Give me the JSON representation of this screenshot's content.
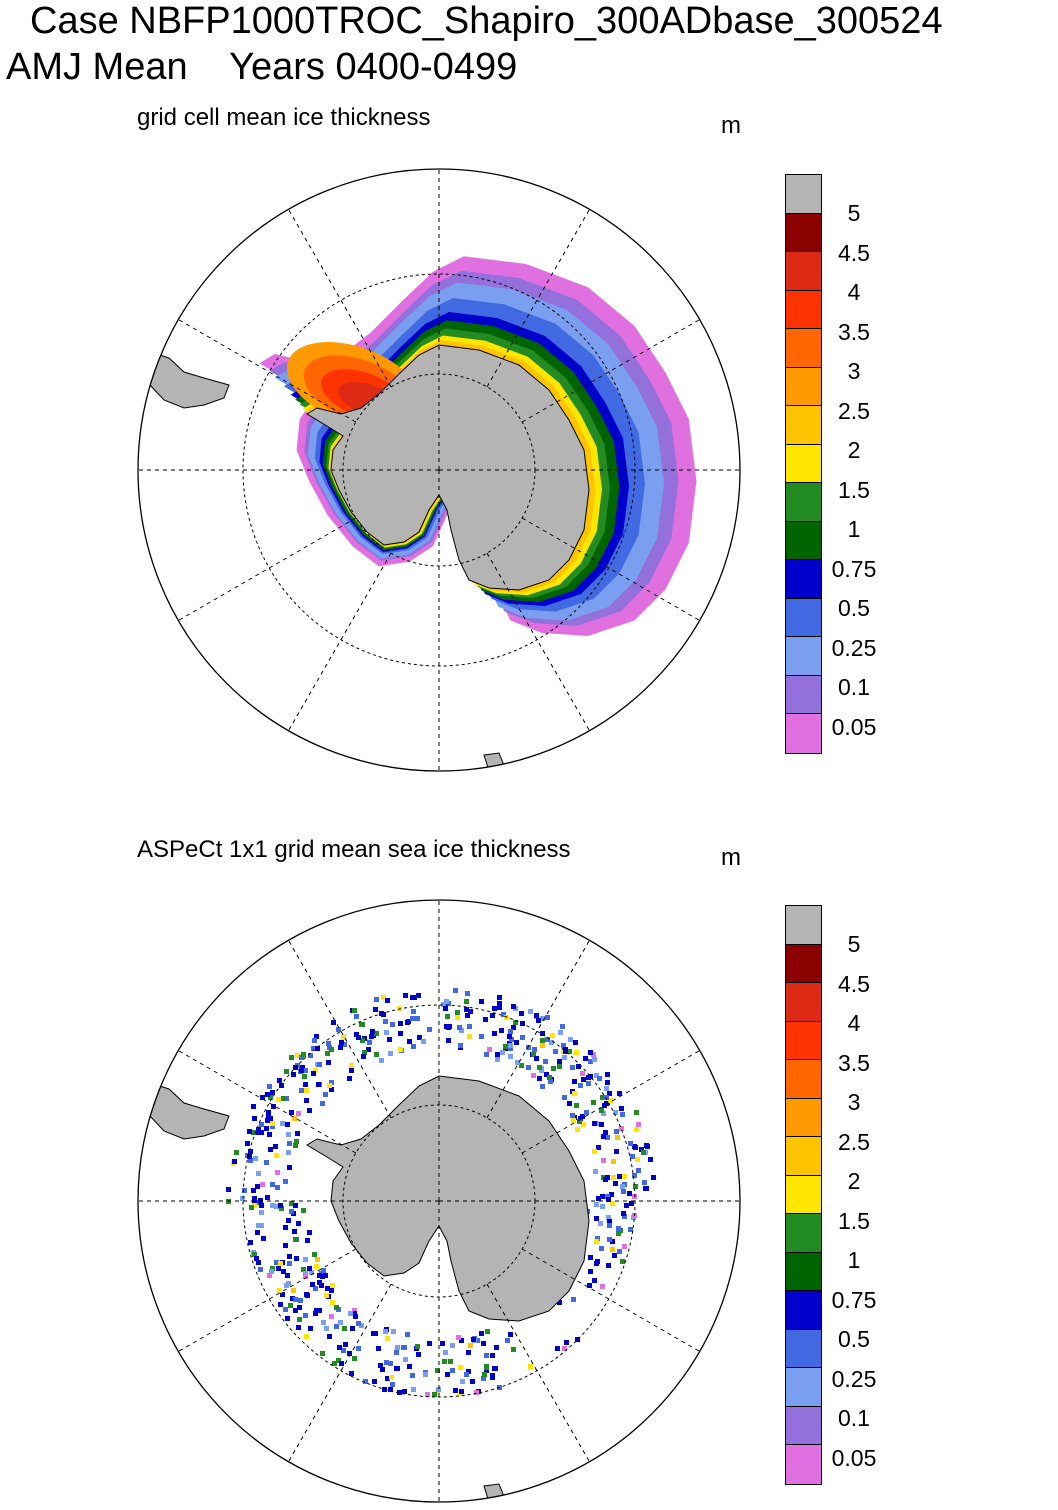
{
  "title": {
    "line1": "Case NBFP1000TROC_Shapiro_300ADbase_300524",
    "line2": "AMJ Mean    Years 0400-0499"
  },
  "panels": [
    {
      "subtitle": "grid cell mean ice thickness",
      "units": "m"
    },
    {
      "subtitle": "ASPeCt 1x1 grid mean sea ice thickness",
      "units": "m"
    }
  ],
  "colorbar": {
    "labels": [
      "5",
      "4.5",
      "4",
      "3.5",
      "3",
      "2.5",
      "2",
      "1.5",
      "1",
      "0.75",
      "0.5",
      "0.25",
      "0.1",
      "0.05"
    ],
    "colors": [
      "#b4b4b4",
      "#8b0000",
      "#dc2a14",
      "#ff3300",
      "#ff6600",
      "#ff9900",
      "#ffc400",
      "#ffe600",
      "#228b22",
      "#006400",
      "#0000cd",
      "#4169e1",
      "#7b9ff0",
      "#9370db",
      "#e070e0"
    ]
  }
}
